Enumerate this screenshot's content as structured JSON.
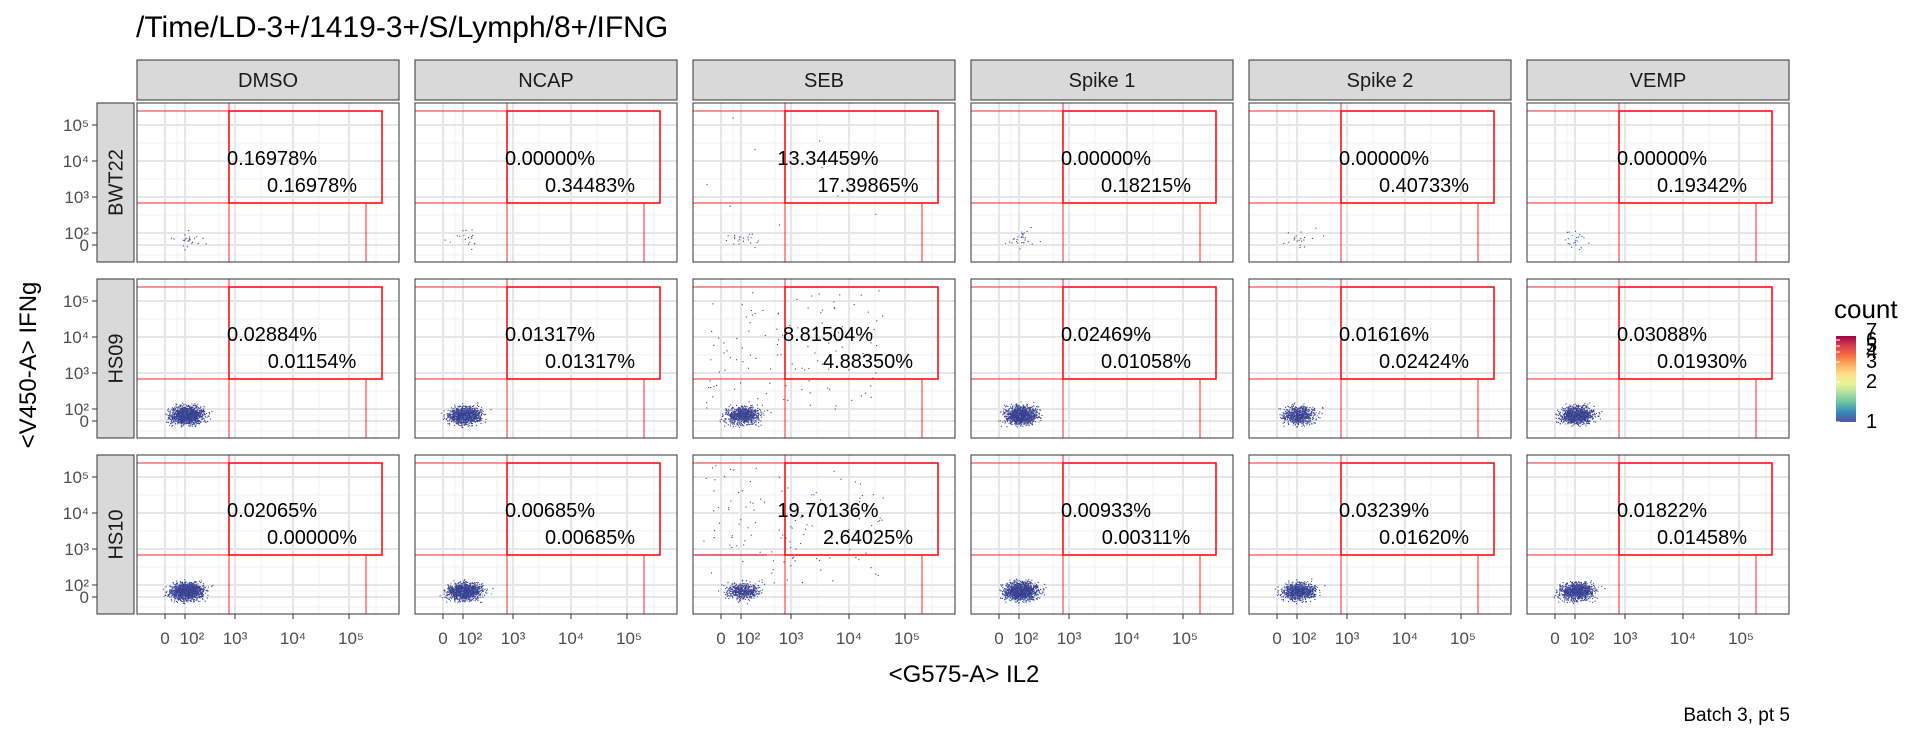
{
  "chart_data": {
    "type": "scatter",
    "title": "/Time/LD-3+/1419-3+/S/Lymph/8+/IFNG",
    "xlabel": "<G575-A> IL2",
    "ylabel": "<V450-A> IFNg",
    "caption": "Batch 3, pt 5",
    "legend": {
      "title": "count",
      "labels": [
        "7",
        "6",
        "5",
        "4",
        "3",
        "2",
        "1"
      ],
      "colors": [
        "#9e0142",
        "#d53e4f",
        "#f46d43",
        "#fdae61",
        "#fee08b",
        "#e6f598",
        "#abdda4",
        "#66c2a5",
        "#3288bd",
        "#5e4fa2"
      ],
      "position": "right"
    },
    "x_ticks": [
      "0",
      "10²",
      "10³",
      "10⁴",
      "10⁵"
    ],
    "y_ticks": [
      "10⁵",
      "10⁴",
      "10³",
      "10²",
      "0"
    ],
    "columns": [
      "DMSO",
      "NCAP",
      "SEB",
      "Spike 1",
      "Spike 2",
      "VEMP"
    ],
    "rows": [
      "BWT22",
      "HS09",
      "HS10"
    ],
    "gate_color": "#ff0000",
    "panels": [
      [
        {
          "upper": "0.16978%",
          "lower": "0.16978%",
          "cells": 25
        },
        {
          "upper": "0.00000%",
          "lower": "0.34483%",
          "cells": 18
        },
        {
          "upper": "13.34459%",
          "lower": "17.39865%",
          "cells": 22
        },
        {
          "upper": "0.00000%",
          "lower": "0.18215%",
          "cells": 30
        },
        {
          "upper": "0.00000%",
          "lower": "0.40733%",
          "cells": 20
        },
        {
          "upper": "0.00000%",
          "lower": "0.19342%",
          "cells": 22
        }
      ],
      [
        {
          "upper": "0.02884%",
          "lower": "0.01154%",
          "cells": 1400
        },
        {
          "upper": "0.01317%",
          "lower": "0.01317%",
          "cells": 1100
        },
        {
          "upper": "8.81504%",
          "lower": "4.88350%",
          "cells": 900
        },
        {
          "upper": "0.02469%",
          "lower": "0.01058%",
          "cells": 1200
        },
        {
          "upper": "0.01616%",
          "lower": "0.02424%",
          "cells": 700
        },
        {
          "upper": "0.03088%",
          "lower": "0.01930%",
          "cells": 1100
        }
      ],
      [
        {
          "upper": "0.02065%",
          "lower": "0.00000%",
          "cells": 1400
        },
        {
          "upper": "0.00685%",
          "lower": "0.00685%",
          "cells": 1300
        },
        {
          "upper": "19.70136%",
          "lower": "2.64025%",
          "cells": 500
        },
        {
          "upper": "0.00933%",
          "lower": "0.00311%",
          "cells": 1400
        },
        {
          "upper": "0.03239%",
          "lower": "0.01620%",
          "cells": 900
        },
        {
          "upper": "0.01822%",
          "lower": "0.01458%",
          "cells": 1100
        }
      ]
    ]
  }
}
